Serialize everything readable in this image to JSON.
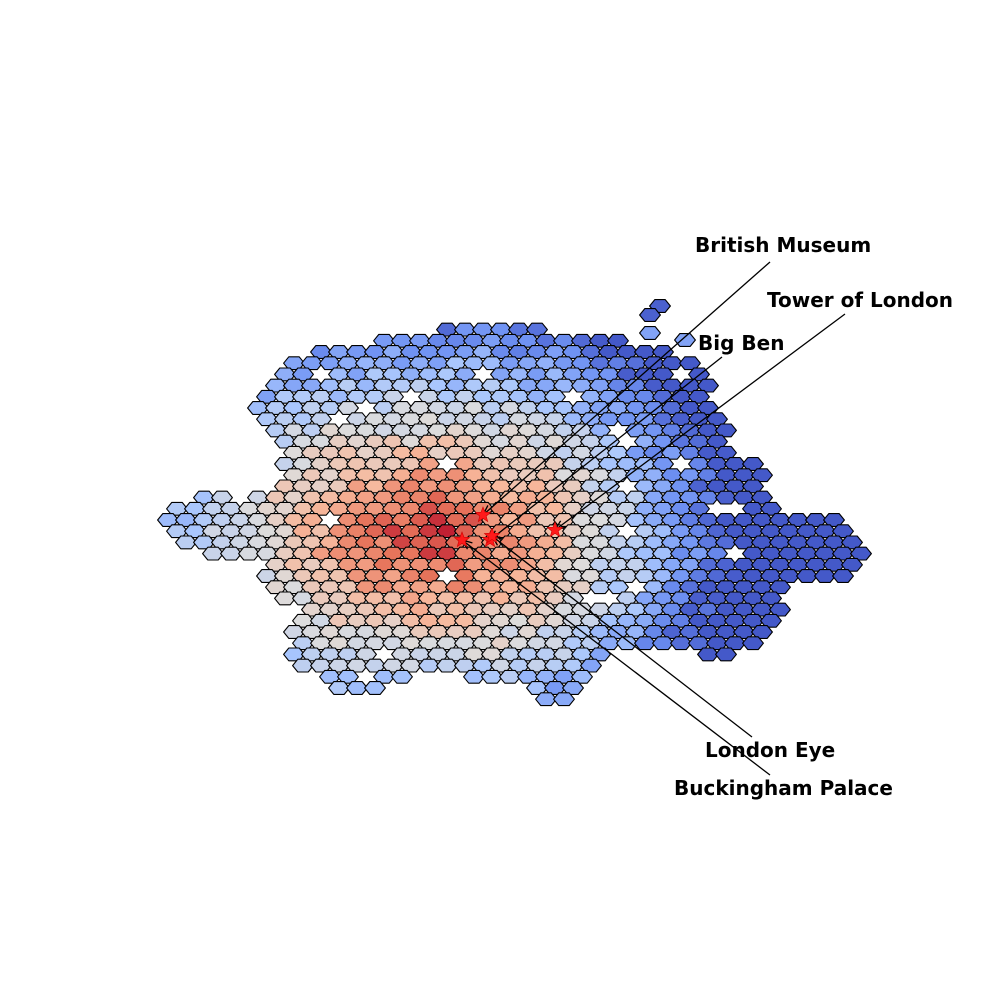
{
  "map": {
    "colormap": "coolwarm",
    "colormap_colors": [
      "#3b4cc0",
      "#6f92f3",
      "#aac7fd",
      "#dddcdc",
      "#f7b89c",
      "#e7745b",
      "#b40426"
    ],
    "landmark_marker_color": "#ff0000",
    "annotation_color": "#000000"
  },
  "landmarks": [
    {
      "id": "british-museum",
      "label": "British Museum"
    },
    {
      "id": "tower-of-london",
      "label": "Tower of London"
    },
    {
      "id": "big-ben",
      "label": "Big Ben"
    },
    {
      "id": "london-eye",
      "label": "London Eye"
    },
    {
      "id": "buckingham-palace",
      "label": "Buckingham Palace"
    }
  ]
}
